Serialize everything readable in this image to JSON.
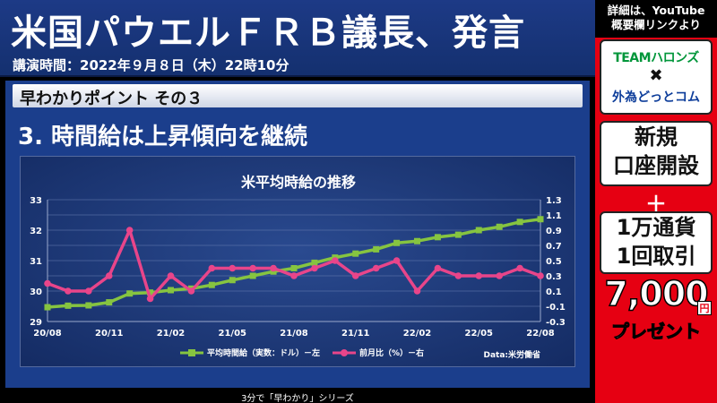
{
  "header": {
    "title": "米国パウエルＦＲＢ議長、発言",
    "subtitle": "講演時間：2022年９月８日（木）22時10分"
  },
  "section": {
    "point_label": "早わかりポイント その３",
    "heading": "3. 時間給は上昇傾向を継続"
  },
  "chart_data": {
    "type": "line",
    "title": "米平均時給の推移",
    "source": "Data:米労働省",
    "x": [
      "2020-08",
      "2020-09",
      "2020-10",
      "2020-11",
      "2020-12",
      "2021-01",
      "2021-02",
      "2021-03",
      "2021-04",
      "2021-05",
      "2021-06",
      "2021-07",
      "2021-08",
      "2021-09",
      "2021-10",
      "2021-11",
      "2021-12",
      "2022-01",
      "2022-02",
      "2022-03",
      "2022-04",
      "2022-05",
      "2022-06",
      "2022-07",
      "2022-08"
    ],
    "x_tick_labels": [
      "20/08",
      "20/11",
      "21/02",
      "21/05",
      "21/08",
      "21/11",
      "22/02",
      "22/05",
      "22/08"
    ],
    "y_left": {
      "lim": [
        29,
        33
      ],
      "ticks": [
        "29",
        "30",
        "31",
        "32",
        "33"
      ]
    },
    "y_right": {
      "lim": [
        -0.3,
        1.3
      ],
      "ticks": [
        "-0.3",
        "-0.1",
        "0.1",
        "0.3",
        "0.5",
        "0.7",
        "0.9",
        "1.1",
        "1.3"
      ]
    },
    "series": [
      {
        "name": "平均時間給（実数：ドル）－左",
        "axis": "left",
        "color": "#86c440",
        "marker": "square",
        "values": [
          29.47,
          29.52,
          29.53,
          29.63,
          29.92,
          29.95,
          30.03,
          30.08,
          30.2,
          30.36,
          30.5,
          30.64,
          30.75,
          30.93,
          31.1,
          31.23,
          31.37,
          31.58,
          31.64,
          31.77,
          31.85,
          32.0,
          32.11,
          32.27,
          32.36
        ]
      },
      {
        "name": "前月比（%）－右",
        "axis": "right",
        "color": "#e8458a",
        "marker": "circle",
        "values": [
          0.2,
          0.1,
          0.1,
          0.3,
          0.9,
          0.0,
          0.3,
          0.1,
          0.4,
          0.4,
          0.4,
          0.4,
          0.3,
          0.4,
          0.5,
          0.3,
          0.4,
          0.5,
          0.1,
          0.4,
          0.3,
          0.3,
          0.3,
          0.4,
          0.3
        ]
      }
    ],
    "grid": true,
    "legend": "bottom"
  },
  "footer": {
    "text": "3分で「早わかり」シリーズ"
  },
  "side": {
    "top_text_line1": "詳細は、YouTube",
    "top_text_line2": "概要欄リンクより",
    "logo_team": "TEAMハロンズ",
    "logo_x": "✖",
    "logo_gaitame": "外為どっとコム",
    "account_line1": "新規",
    "account_line2": "口座開設",
    "plus": "＋",
    "trade_line1": "1万通貨",
    "trade_line2": "1回取引",
    "amount": "7,000",
    "yen": "円",
    "present": "プレゼント"
  }
}
